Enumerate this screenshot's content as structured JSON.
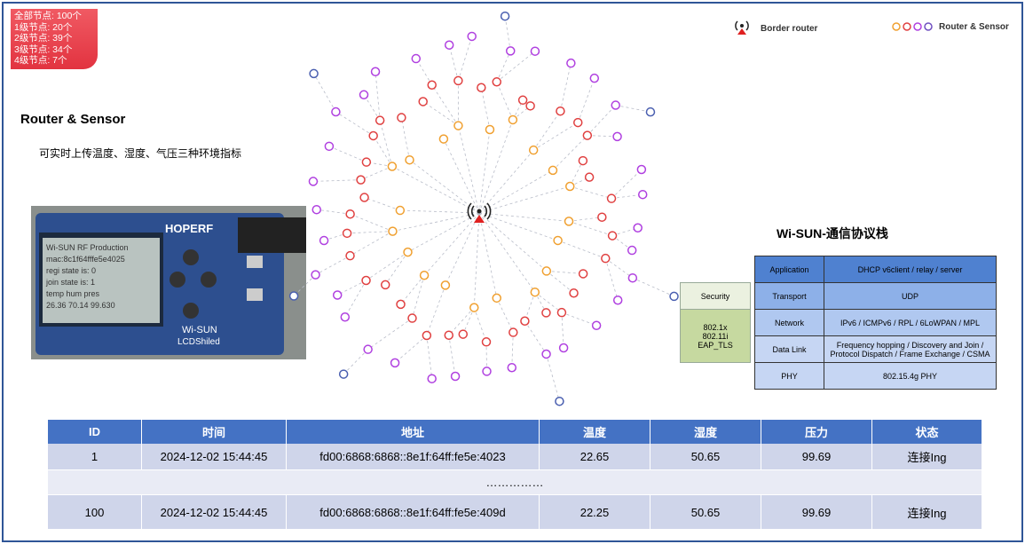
{
  "stats_box": {
    "lines": [
      "全部节点: 100个",
      "1级节点: 20个",
      "2级节点: 39个",
      "3级节点: 34个",
      "4级节点: 7个"
    ]
  },
  "left": {
    "title": "Router & Sensor",
    "description": "可实时上传温度、湿度、气压三种环境指标",
    "device": {
      "screen_lines": [
        "Wi-SUN RF Production",
        "mac:8c1f64fffe5e4025",
        "regi state is: 0",
        "join state is: 1",
        "temp   hum   pres",
        "26.36  70.14  99.630"
      ],
      "brand": "HOPERF",
      "module": "Wi-SUN",
      "shield": "LCDShiled"
    }
  },
  "legend": {
    "border_router": "Border router",
    "router_sensor": "Router & Sensor"
  },
  "protocol": {
    "title": "Wi-SUN-通信协议栈",
    "layers": [
      {
        "name": "Application",
        "detail": "DHCP v6client / relay / server"
      },
      {
        "name": "Transport",
        "detail": "UDP"
      },
      {
        "name": "Network",
        "detail": "IPv6 / ICMPv6 / RPL / 6LoWPAN / MPL"
      },
      {
        "name": "Data Link",
        "detail": "Frequency hopping / Discovery and Join / Protocol Dispatch / Frame Exchange / CSMA"
      },
      {
        "name": "PHY",
        "detail": "802.15.4g PHY"
      }
    ],
    "security": {
      "title": "Security",
      "items": [
        "802.1x",
        "802.11i",
        "EAP_TLS"
      ]
    }
  },
  "table": {
    "headers": [
      "ID",
      "时间",
      "地址",
      "温度",
      "湿度",
      "压力",
      "状态"
    ],
    "rows": [
      [
        "1",
        "2024-12-02 15:44:45",
        "fd00:6868:6868::8e1f:64ff:fe5e:4023",
        "22.65",
        "50.65",
        "99.69",
        "连接Ing"
      ],
      [
        "100",
        "2024-12-02 15:44:45",
        "fd00:6868:6868::8e1f:64ff:fe5e:409d",
        "22.25",
        "50.65",
        "99.69",
        "连接Ing"
      ]
    ],
    "ellipsis": "……………"
  }
}
